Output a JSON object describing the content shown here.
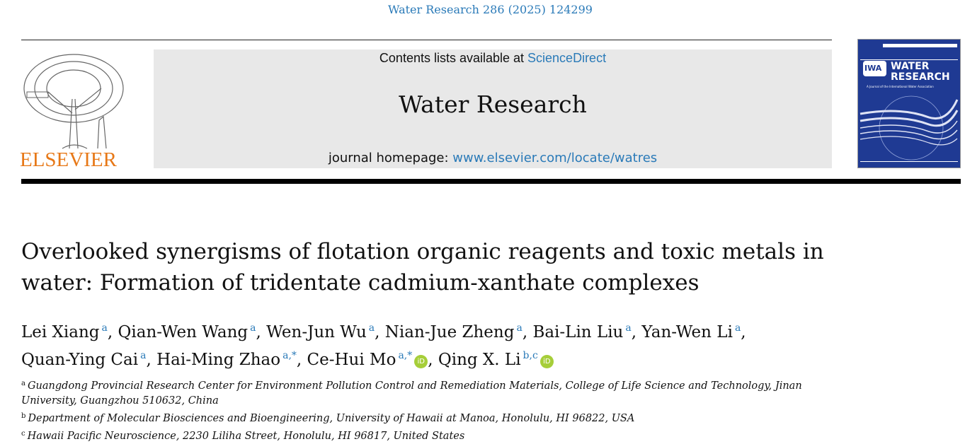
{
  "citation": "Water Research 286 (2025) 124299",
  "publisher": {
    "name": "ELSEVIER",
    "color": "#e77817"
  },
  "banner": {
    "contents_prefix": "Contents lists available at ",
    "contents_link": "ScienceDirect",
    "journal": "Water Research",
    "homepage_prefix": "journal homepage: ",
    "homepage_link": "www.elsevier.com/locate/watres"
  },
  "cover": {
    "logo": "IWA",
    "title_line1": "WATER",
    "title_line2": "RESEARCH",
    "subtitle": "A Journal of the International Water Association"
  },
  "title": "Overlooked synergisms of flotation organic reagents and toxic metals in water: Formation of tridentate cadmium-xanthate complexes",
  "authors": [
    {
      "name": "Lei Xiang",
      "aff": "a",
      "sep": ", "
    },
    {
      "name": "Qian-Wen Wang",
      "aff": "a",
      "sep": ", "
    },
    {
      "name": "Wen-Jun Wu",
      "aff": "a",
      "sep": ", "
    },
    {
      "name": "Nian-Jue Zheng",
      "aff": "a",
      "sep": ", "
    },
    {
      "name": "Bai-Lin Liu",
      "aff": "a",
      "sep": ", "
    },
    {
      "name": "Yan-Wen Li",
      "aff": "a",
      "sep": ","
    },
    {
      "name": "Quan-Ying Cai",
      "aff": "a",
      "sep": ", "
    },
    {
      "name": "Hai-Ming Zhao",
      "aff": "a,*",
      "sep": ", "
    },
    {
      "name": "Ce-Hui Mo",
      "aff": "a,*",
      "orcid": "iD",
      "sep": ", "
    },
    {
      "name": "Qing X. Li",
      "aff": "b,c",
      "orcid": "iD",
      "sep": ""
    }
  ],
  "affiliations": [
    {
      "key": "a",
      "text": "Guangdong Provincial Research Center for Environment Pollution Control and Remediation Materials, College of Life Science and Technology, Jinan University, Guangzhou 510632, China"
    },
    {
      "key": "b",
      "text": "Department of Molecular Biosciences and Bioengineering, University of Hawaii at Manoa, Honolulu, HI 96822, USA"
    },
    {
      "key": "c",
      "text": "Hawaii Pacific Neuroscience, 2230 Liliha Street, Honolulu, HI 96817, United States"
    }
  ]
}
